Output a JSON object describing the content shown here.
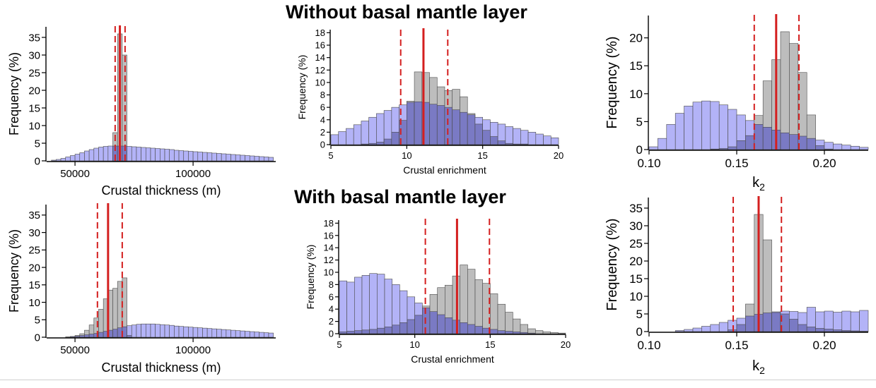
{
  "figure": {
    "title_top": "Without basal mantle layer",
    "title_bottom": "With basal mantle layer"
  },
  "colors": {
    "blue_fill": "#b3b3f7",
    "gray_fill": "#bdbdbd",
    "overlap_fill": "#7a7ac4",
    "bar_stroke": "#4a4a4a",
    "median_line": "#d41f1f",
    "interval_line": "#d41f1f"
  },
  "chart_data": [
    {
      "id": "thickness-without",
      "type": "bar",
      "xlabel": "Crustal thickness (m)",
      "ylabel": "Frequency (%)",
      "xlim": [
        38000,
        135000
      ],
      "ylim": [
        0,
        38
      ],
      "xticks": [
        50000,
        100000
      ],
      "xtick_labels": [
        "50000",
        "100000"
      ],
      "yticks": [
        0,
        5,
        10,
        15,
        20,
        25,
        30,
        35
      ],
      "ytick_labels": [
        "0",
        "5",
        "10",
        "15",
        "20",
        "25",
        "30",
        "35"
      ],
      "bin_start": 38000,
      "bin_width": 2000,
      "series": [
        {
          "color": "blue",
          "values": [
            0,
            0.2,
            0.4,
            0.7,
            1.1,
            1.5,
            1.9,
            2.3,
            2.8,
            3.2,
            3.6,
            3.9,
            4.1,
            4.2,
            4.2,
            4.2,
            4.2,
            4.1,
            4.0,
            3.9,
            3.8,
            3.7,
            3.6,
            3.5,
            3.4,
            3.3,
            3.2,
            3.0,
            2.9,
            2.8,
            2.7,
            2.6,
            2.5,
            2.4,
            2.3,
            2.2,
            2.1,
            2.0,
            1.9,
            1.8,
            1.7,
            1.6,
            1.5,
            1.4,
            1.3,
            1.2,
            1.1,
            1.0
          ]
        },
        {
          "color": "gray",
          "values": [
            0,
            0,
            0,
            0,
            0,
            0,
            0,
            0,
            0,
            0,
            0,
            0,
            0,
            0,
            8,
            36,
            30,
            0,
            0,
            0,
            0,
            0,
            0,
            0,
            0,
            0,
            0,
            0,
            0,
            0,
            0,
            0,
            0,
            0,
            0,
            0,
            0,
            0,
            0,
            0,
            0,
            0,
            0,
            0,
            0,
            0,
            0,
            0
          ]
        }
      ],
      "median": 69000,
      "interval": [
        67000,
        71200
      ]
    },
    {
      "id": "enrichment-without",
      "type": "bar",
      "xlabel": "Crustal enrichment",
      "ylabel": "Frequency (%)",
      "xlim": [
        5,
        20
      ],
      "ylim": [
        0,
        18.5
      ],
      "xticks": [
        5,
        10,
        15,
        20
      ],
      "xtick_labels": [
        "5",
        "10",
        "15",
        "20"
      ],
      "yticks": [
        0,
        2,
        4,
        6,
        8,
        10,
        12,
        14,
        16,
        18
      ],
      "ytick_labels": [
        "0",
        "2",
        "4",
        "6",
        "8",
        "10",
        "12",
        "14",
        "16",
        "18"
      ],
      "bin_start": 5,
      "bin_width": 0.5,
      "series": [
        {
          "color": "blue",
          "values": [
            1.6,
            2.1,
            2.6,
            3.2,
            3.8,
            4.4,
            5.0,
            5.5,
            6.0,
            6.4,
            6.8,
            6.9,
            6.8,
            6.5,
            6.3,
            6.0,
            5.6,
            5.2,
            4.8,
            4.4,
            4.0,
            3.6,
            3.3,
            2.9,
            2.6,
            2.3,
            2.0,
            1.7,
            1.4,
            1.1
          ]
        },
        {
          "color": "gray",
          "values": [
            0,
            0,
            0,
            0,
            0.1,
            0.2,
            0.4,
            0.9,
            2.0,
            3.9,
            7.0,
            11.7,
            11.6,
            10.8,
            9.3,
            8.7,
            8.9,
            7.7,
            5.0,
            3.3,
            2.3,
            1.3,
            0.6,
            0.2,
            0.1,
            0.1,
            0,
            0,
            0,
            0
          ]
        }
      ],
      "median": 11.1,
      "interval": [
        9.6,
        12.7
      ]
    },
    {
      "id": "k2-without",
      "type": "bar",
      "xlabel": "k2",
      "ylabel": "Frequency (%)",
      "xlim": [
        0.1,
        0.225
      ],
      "ylim": [
        0,
        24
      ],
      "xticks": [
        0.1,
        0.15,
        0.2
      ],
      "xtick_labels": [
        "0.10",
        "0.15",
        "0.20"
      ],
      "yticks": [
        0,
        5,
        10,
        15,
        20
      ],
      "ytick_labels": [
        "0",
        "5",
        "10",
        "15",
        "20"
      ],
      "bin_start": 0.1,
      "bin_width": 0.005,
      "series": [
        {
          "color": "blue",
          "values": [
            0.5,
            2.0,
            4.5,
            6.5,
            7.8,
            8.5,
            8.7,
            8.6,
            8.0,
            7.2,
            6.2,
            5.2,
            4.5,
            4.0,
            3.5,
            3.0,
            2.7,
            2.4,
            2.0,
            1.7,
            1.3,
            1.0,
            0.8,
            0.6,
            0.4
          ]
        },
        {
          "color": "gray",
          "values": [
            0,
            0,
            0,
            0,
            0,
            0,
            0,
            0.1,
            0.2,
            0.5,
            1.6,
            2.5,
            6.1,
            12.3,
            16.1,
            21.1,
            19.0,
            13.8,
            6.2,
            0.7,
            0.1,
            0,
            0,
            0,
            0
          ]
        }
      ],
      "median": 0.1725,
      "interval": [
        0.16,
        0.1855
      ]
    },
    {
      "id": "thickness-with",
      "type": "bar",
      "xlabel": "Crustal thickness (m)",
      "ylabel": "Frequency (%)",
      "xlim": [
        38000,
        135000
      ],
      "ylim": [
        0,
        38
      ],
      "xticks": [
        50000,
        100000
      ],
      "xtick_labels": [
        "50000",
        "100000"
      ],
      "yticks": [
        0,
        5,
        10,
        15,
        20,
        25,
        30,
        35
      ],
      "ytick_labels": [
        "0",
        "5",
        "10",
        "15",
        "20",
        "25",
        "30",
        "35"
      ],
      "bin_start": 38000,
      "bin_width": 2000,
      "series": [
        {
          "color": "blue",
          "values": [
            0,
            0,
            0,
            0,
            0.1,
            0.2,
            0.3,
            0.5,
            0.7,
            0.9,
            1.1,
            1.4,
            1.7,
            2.0,
            2.3,
            2.7,
            3.0,
            3.3,
            3.5,
            3.7,
            3.8,
            3.8,
            3.8,
            3.7,
            3.6,
            3.5,
            3.4,
            3.2,
            3.1,
            3.0,
            2.9,
            2.8,
            2.7,
            2.6,
            2.5,
            2.4,
            2.3,
            2.2,
            2.1,
            2.0,
            1.9,
            1.8,
            1.7,
            1.6,
            1.5,
            1.4,
            1.3,
            1.2
          ]
        },
        {
          "color": "gray",
          "values": [
            0,
            0,
            0,
            0,
            0,
            0.2,
            0.5,
            1.0,
            2.0,
            3.5,
            5.5,
            8.0,
            11.0,
            13.5,
            14.0,
            16.0,
            17.0,
            0.5,
            0,
            0,
            0,
            0,
            0,
            0,
            0,
            0,
            0,
            0,
            0,
            0,
            0,
            0,
            0,
            0,
            0,
            0,
            0,
            0,
            0,
            0,
            0,
            0,
            0,
            0,
            0,
            0,
            0,
            0
          ]
        }
      ],
      "median": 64000,
      "interval": [
        59500,
        70000
      ]
    },
    {
      "id": "enrichment-with",
      "type": "bar",
      "xlabel": "Crustal enrichment",
      "ylabel": "Frequency (%)",
      "xlim": [
        5,
        20
      ],
      "ylim": [
        0,
        18.5
      ],
      "xticks": [
        5,
        10,
        15,
        20
      ],
      "xtick_labels": [
        "5",
        "10",
        "15",
        "20"
      ],
      "yticks": [
        0,
        2,
        4,
        6,
        8,
        10,
        12,
        14,
        16,
        18
      ],
      "ytick_labels": [
        "0",
        "2",
        "4",
        "6",
        "8",
        "10",
        "12",
        "14",
        "16",
        "18"
      ],
      "bin_start": 5,
      "bin_width": 0.5,
      "series": [
        {
          "color": "blue",
          "values": [
            8.6,
            8.4,
            9.2,
            9.5,
            9.8,
            9.7,
            8.9,
            8.0,
            7.0,
            6.0,
            5.0,
            4.2,
            3.6,
            3.1,
            2.6,
            2.2,
            1.8,
            1.5,
            1.2,
            0.9,
            0.7,
            0.5,
            0.4,
            0.3,
            0.2,
            0.1,
            0,
            0,
            0,
            0
          ]
        },
        {
          "color": "gray",
          "values": [
            0.3,
            0.4,
            0.5,
            0.6,
            0.7,
            0.9,
            1.1,
            1.4,
            1.8,
            2.3,
            3.0,
            4.5,
            6.4,
            7.5,
            7.9,
            9.4,
            11.2,
            10.5,
            8.8,
            8.2,
            6.5,
            4.8,
            3.5,
            2.4,
            1.5,
            0.8,
            0.5,
            0.3,
            0.2,
            0.1
          ]
        }
      ],
      "median": 12.8,
      "interval": [
        10.7,
        14.95
      ]
    },
    {
      "id": "k2-with",
      "type": "bar",
      "xlabel": "k2",
      "ylabel": "Frequency (%)",
      "xlim": [
        0.1,
        0.225
      ],
      "ylim": [
        0,
        38
      ],
      "xticks": [
        0.1,
        0.15,
        0.2
      ],
      "xtick_labels": [
        "0.10",
        "0.15",
        "0.20"
      ],
      "yticks": [
        0,
        5,
        10,
        15,
        20,
        25,
        30,
        35
      ],
      "ytick_labels": [
        "0",
        "5",
        "10",
        "15",
        "20",
        "25",
        "30",
        "35"
      ],
      "bin_start": 0.1,
      "bin_width": 0.005,
      "series": [
        {
          "color": "blue",
          "values": [
            0,
            0,
            0,
            0.3,
            0.6,
            1.0,
            1.5,
            2.0,
            2.6,
            3.2,
            3.8,
            4.4,
            4.9,
            5.3,
            5.6,
            5.8,
            5.7,
            5.4,
            6.9,
            5.6,
            5.8,
            5.5,
            5.8,
            5.6,
            6.0
          ]
        },
        {
          "color": "gray",
          "values": [
            0,
            0,
            0,
            0,
            0,
            0,
            0,
            0,
            0,
            0.5,
            2.0,
            7.8,
            33.2,
            26.0,
            5.4,
            5.0,
            3.5,
            2.0,
            1.3,
            0.9,
            0.7,
            0.5,
            0.3,
            0.2,
            0.1
          ]
        }
      ],
      "median": 0.1625,
      "interval": [
        0.148,
        0.1755
      ]
    }
  ]
}
